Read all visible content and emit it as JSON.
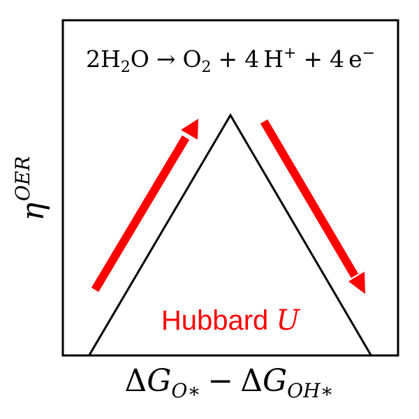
{
  "diagram": {
    "equation": {
      "lhs_coef": "2",
      "lhs_species": "H",
      "lhs_sub": "2",
      "lhs_tail": "O",
      "arrow": "→",
      "o2": "O",
      "o2_sub": "2",
      "plus1": "+",
      "proton_coef": "4",
      "proton": "H",
      "proton_sup": "+",
      "plus2": "+",
      "electron_coef": "4",
      "electron": "e",
      "electron_sup": "−"
    },
    "y_axis_label": {
      "symbol": "η",
      "superscript": "OER"
    },
    "x_axis_label": {
      "delta1": "Δ",
      "g1": "G",
      "sub1": "O∗",
      "minus": "−",
      "delta2": "Δ",
      "g2": "G",
      "sub2": "OH∗"
    },
    "annotation": {
      "text": "Hubbard ",
      "variable": "U"
    },
    "colors": {
      "frame": "#000000",
      "curve": "#000000",
      "arrows": "#ff0000",
      "annotation": "#ff0000",
      "background": "#ffffff"
    },
    "arrows": [
      {
        "name": "up-arrow",
        "direction": "up-right"
      },
      {
        "name": "down-arrow",
        "direction": "down-right"
      }
    ]
  }
}
